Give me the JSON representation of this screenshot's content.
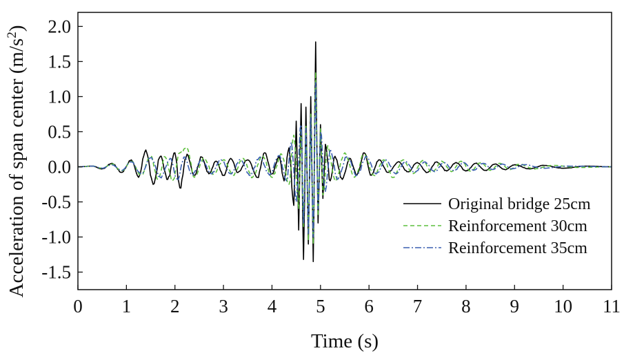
{
  "chart_data": {
    "type": "line",
    "title": "",
    "xlabel": "Time (s)",
    "ylabel_main": "Acceleration of span center (m/s",
    "ylabel_sup": "2",
    "ylabel_end": ")",
    "xlim": [
      0,
      11
    ],
    "ylim": [
      -1.75,
      2.2
    ],
    "xticks": [
      0,
      1,
      2,
      3,
      4,
      5,
      6,
      7,
      8,
      9,
      10,
      11
    ],
    "xtick_labels": [
      "0",
      "1",
      "2",
      "3",
      "4",
      "5",
      "6",
      "7",
      "8",
      "9",
      "10",
      "11"
    ],
    "yticks": [
      2.0,
      1.5,
      1.0,
      0.5,
      0.0,
      -0.5,
      -1.0,
      -1.5
    ],
    "ytick_labels": [
      "2.0",
      "1.5",
      "1.0",
      "0.5",
      "0.0",
      "-0.5",
      "-1.0",
      "-1.5"
    ],
    "grid": false,
    "legend_position": "lower-right",
    "series": [
      {
        "name": "Original bridge 25cm",
        "color": "#000000",
        "style": "solid",
        "peaks": [
          [
            0.0,
            0.0
          ],
          [
            0.3,
            0.01
          ],
          [
            0.5,
            -0.03
          ],
          [
            0.7,
            0.05
          ],
          [
            0.9,
            -0.08
          ],
          [
            1.1,
            0.1
          ],
          [
            1.25,
            -0.15
          ],
          [
            1.4,
            0.24
          ],
          [
            1.55,
            -0.25
          ],
          [
            1.7,
            0.15
          ],
          [
            1.85,
            -0.18
          ],
          [
            2.0,
            0.2
          ],
          [
            2.1,
            -0.3
          ],
          [
            2.25,
            0.18
          ],
          [
            2.4,
            -0.12
          ],
          [
            2.55,
            0.14
          ],
          [
            2.7,
            -0.1
          ],
          [
            2.85,
            0.08
          ],
          [
            3.0,
            -0.12
          ],
          [
            3.15,
            0.12
          ],
          [
            3.3,
            -0.08
          ],
          [
            3.5,
            0.1
          ],
          [
            3.7,
            -0.15
          ],
          [
            3.85,
            0.2
          ],
          [
            4.0,
            -0.1
          ],
          [
            4.15,
            0.15
          ],
          [
            4.25,
            -0.2
          ],
          [
            4.35,
            0.27
          ],
          [
            4.45,
            -0.55
          ],
          [
            4.5,
            0.65
          ],
          [
            4.55,
            -0.9
          ],
          [
            4.6,
            0.9
          ],
          [
            4.65,
            -1.32
          ],
          [
            4.7,
            0.85
          ],
          [
            4.75,
            -1.1
          ],
          [
            4.8,
            1.0
          ],
          [
            4.85,
            -1.35
          ],
          [
            4.9,
            1.78
          ],
          [
            4.95,
            -0.8
          ],
          [
            5.0,
            0.6
          ],
          [
            5.05,
            -0.45
          ],
          [
            5.1,
            0.32
          ],
          [
            5.2,
            -0.2
          ],
          [
            5.3,
            0.15
          ],
          [
            5.45,
            -0.18
          ],
          [
            5.6,
            0.12
          ],
          [
            5.75,
            -0.12
          ],
          [
            5.9,
            0.2
          ],
          [
            6.05,
            -0.12
          ],
          [
            6.2,
            0.1
          ],
          [
            6.4,
            -0.08
          ],
          [
            6.6,
            0.07
          ],
          [
            6.8,
            -0.07
          ],
          [
            7.0,
            0.06
          ],
          [
            7.2,
            -0.08
          ],
          [
            7.4,
            0.07
          ],
          [
            7.6,
            -0.06
          ],
          [
            7.8,
            0.06
          ],
          [
            8.0,
            -0.06
          ],
          [
            8.2,
            0.05
          ],
          [
            8.4,
            -0.05
          ],
          [
            8.6,
            0.04
          ],
          [
            8.8,
            -0.04
          ],
          [
            9.0,
            0.03
          ],
          [
            9.3,
            -0.03
          ],
          [
            9.6,
            0.02
          ],
          [
            10.0,
            -0.02
          ],
          [
            10.5,
            0.01
          ],
          [
            11.0,
            0.0
          ]
        ]
      },
      {
        "name": "Reinforcement 30cm",
        "color": "#5cbf3c",
        "style": "dashed",
        "peaks": [
          [
            0.0,
            0.0
          ],
          [
            0.3,
            0.01
          ],
          [
            0.5,
            -0.02
          ],
          [
            0.7,
            0.04
          ],
          [
            0.9,
            -0.06
          ],
          [
            1.1,
            0.08
          ],
          [
            1.3,
            -0.12
          ],
          [
            1.5,
            0.15
          ],
          [
            1.65,
            -0.18
          ],
          [
            1.8,
            0.14
          ],
          [
            1.95,
            -0.2
          ],
          [
            2.1,
            0.2
          ],
          [
            2.25,
            0.27
          ],
          [
            2.4,
            -0.15
          ],
          [
            2.6,
            0.12
          ],
          [
            2.8,
            -0.1
          ],
          [
            3.0,
            0.1
          ],
          [
            3.2,
            -0.12
          ],
          [
            3.4,
            0.12
          ],
          [
            3.6,
            -0.15
          ],
          [
            3.8,
            0.16
          ],
          [
            4.0,
            -0.15
          ],
          [
            4.2,
            0.18
          ],
          [
            4.35,
            -0.25
          ],
          [
            4.45,
            0.45
          ],
          [
            4.55,
            -0.6
          ],
          [
            4.6,
            0.55
          ],
          [
            4.65,
            -0.85
          ],
          [
            4.7,
            0.6
          ],
          [
            4.75,
            -1.05
          ],
          [
            4.8,
            0.75
          ],
          [
            4.85,
            -1.1
          ],
          [
            4.9,
            1.35
          ],
          [
            4.95,
            -0.7
          ],
          [
            5.0,
            0.55
          ],
          [
            5.05,
            -0.4
          ],
          [
            5.15,
            0.3
          ],
          [
            5.3,
            -0.2
          ],
          [
            5.5,
            0.2
          ],
          [
            5.7,
            -0.15
          ],
          [
            5.9,
            0.18
          ],
          [
            6.1,
            -0.12
          ],
          [
            6.3,
            0.1
          ],
          [
            6.5,
            -0.15
          ],
          [
            6.7,
            0.1
          ],
          [
            6.9,
            -0.1
          ],
          [
            7.1,
            0.09
          ],
          [
            7.3,
            -0.08
          ],
          [
            7.5,
            0.08
          ],
          [
            7.7,
            -0.07
          ],
          [
            7.9,
            0.08
          ],
          [
            8.1,
            -0.06
          ],
          [
            8.3,
            0.06
          ],
          [
            8.5,
            -0.05
          ],
          [
            8.7,
            0.05
          ],
          [
            8.9,
            -0.04
          ],
          [
            9.1,
            0.04
          ],
          [
            9.4,
            -0.03
          ],
          [
            9.8,
            0.02
          ],
          [
            10.3,
            -0.01
          ],
          [
            11.0,
            0.0
          ]
        ]
      },
      {
        "name": "Reinforcement 35cm",
        "color": "#3a5fb0",
        "style": "dashdot",
        "peaks": [
          [
            0.0,
            0.0
          ],
          [
            0.3,
            0.01
          ],
          [
            0.5,
            -0.02
          ],
          [
            0.7,
            0.03
          ],
          [
            0.9,
            -0.05
          ],
          [
            1.1,
            0.07
          ],
          [
            1.3,
            -0.1
          ],
          [
            1.5,
            0.13
          ],
          [
            1.7,
            -0.15
          ],
          [
            1.9,
            0.12
          ],
          [
            2.05,
            -0.18
          ],
          [
            2.2,
            0.14
          ],
          [
            2.35,
            -0.12
          ],
          [
            2.55,
            0.1
          ],
          [
            2.75,
            -0.1
          ],
          [
            2.95,
            0.1
          ],
          [
            3.15,
            -0.1
          ],
          [
            3.35,
            0.1
          ],
          [
            3.55,
            -0.12
          ],
          [
            3.75,
            0.14
          ],
          [
            3.95,
            -0.12
          ],
          [
            4.15,
            0.16
          ],
          [
            4.3,
            -0.2
          ],
          [
            4.4,
            0.35
          ],
          [
            4.5,
            -0.5
          ],
          [
            4.6,
            0.6
          ],
          [
            4.65,
            -0.8
          ],
          [
            4.7,
            0.55
          ],
          [
            4.75,
            -0.95
          ],
          [
            4.8,
            0.7
          ],
          [
            4.85,
            -1.0
          ],
          [
            4.9,
            1.2
          ],
          [
            4.95,
            -0.6
          ],
          [
            5.0,
            0.5
          ],
          [
            5.1,
            -0.35
          ],
          [
            5.2,
            0.25
          ],
          [
            5.35,
            -0.18
          ],
          [
            5.55,
            0.15
          ],
          [
            5.75,
            -0.12
          ],
          [
            5.95,
            0.14
          ],
          [
            6.15,
            -0.1
          ],
          [
            6.35,
            0.1
          ],
          [
            6.55,
            -0.1
          ],
          [
            6.75,
            0.08
          ],
          [
            6.95,
            -0.08
          ],
          [
            7.15,
            0.07
          ],
          [
            7.35,
            -0.07
          ],
          [
            7.55,
            0.06
          ],
          [
            7.75,
            -0.06
          ],
          [
            7.95,
            0.06
          ],
          [
            8.15,
            -0.05
          ],
          [
            8.35,
            0.05
          ],
          [
            8.55,
            -0.04
          ],
          [
            8.75,
            0.04
          ],
          [
            8.95,
            -0.03
          ],
          [
            9.2,
            0.03
          ],
          [
            9.6,
            -0.02
          ],
          [
            10.1,
            0.01
          ],
          [
            11.0,
            0.0
          ]
        ]
      }
    ]
  }
}
